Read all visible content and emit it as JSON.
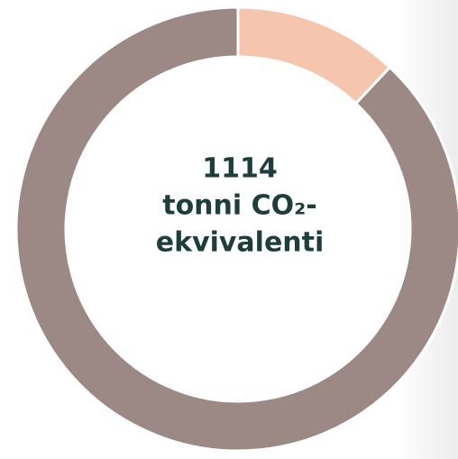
{
  "chart_data": {
    "type": "donut",
    "center_label": [
      "1114",
      "tonni CO₂-",
      "ekvivalenti"
    ],
    "values": [
      12,
      88
    ],
    "colors": [
      "#f5c6ad",
      "#9c8985"
    ]
  }
}
